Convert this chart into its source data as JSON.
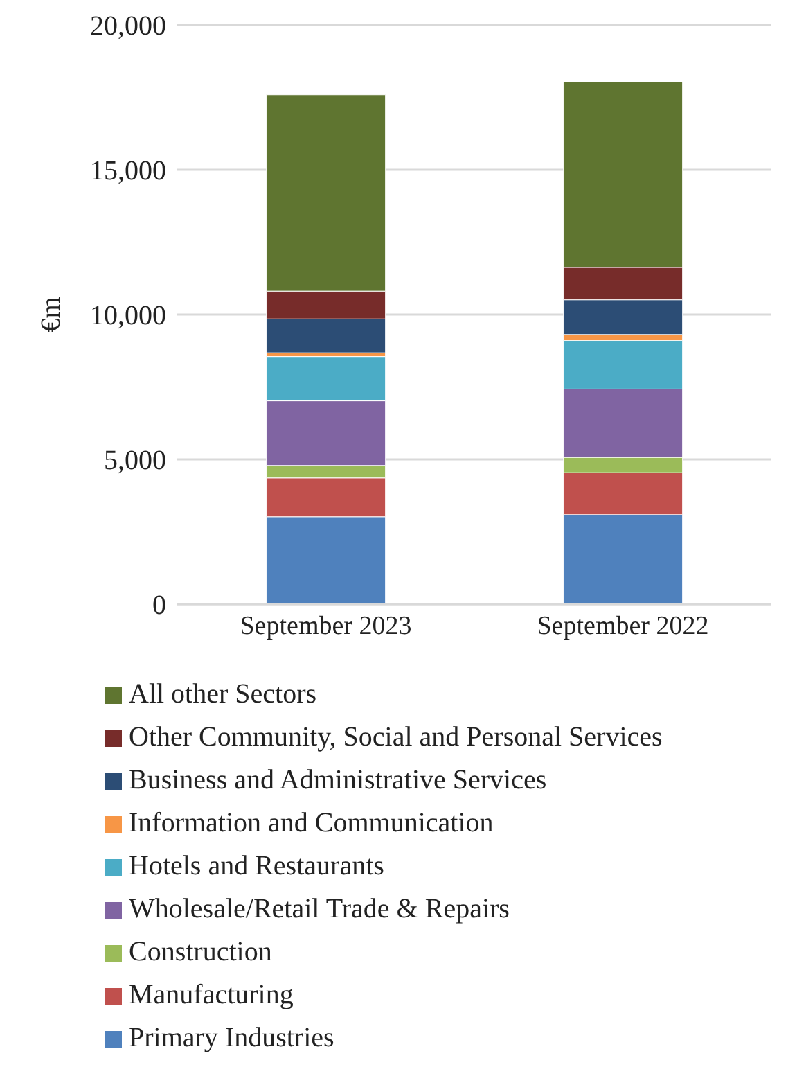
{
  "chart_data": {
    "type": "bar",
    "stacked": true,
    "ylabel": "€m",
    "categories": [
      "September 2023",
      "September 2022"
    ],
    "series": [
      {
        "name": "Primary Industries",
        "color": "#4f81bd",
        "values": [
          3020,
          3090
        ]
      },
      {
        "name": "Manufacturing",
        "color": "#c0504d",
        "values": [
          1340,
          1450
        ]
      },
      {
        "name": "Construction",
        "color": "#9bbb59",
        "values": [
          430,
          530
        ]
      },
      {
        "name": "Wholesale/Retail Trade & Repairs",
        "color": "#8064a2",
        "values": [
          2230,
          2360
        ]
      },
      {
        "name": "Hotels and Restaurants",
        "color": "#4bacc6",
        "values": [
          1530,
          1680
        ]
      },
      {
        "name": "Information and Communication",
        "color": "#f79646",
        "values": [
          130,
          200
        ]
      },
      {
        "name": "Business and Administrative Services",
        "color": "#2c4d75",
        "values": [
          1170,
          1200
        ]
      },
      {
        "name": "Other Community, Social and Personal Services",
        "color": "#772c2a",
        "values": [
          960,
          1120
        ]
      },
      {
        "name": "All other Sectors",
        "color": "#5f7530",
        "values": [
          6780,
          6400
        ]
      }
    ],
    "ylim": [
      0,
      20000
    ],
    "yticks": [
      {
        "value": 0,
        "label": "0"
      },
      {
        "value": 5000,
        "label": "5,000"
      },
      {
        "value": 10000,
        "label": "10,000"
      },
      {
        "value": 15000,
        "label": "15,000"
      },
      {
        "value": 20000,
        "label": "20,000"
      }
    ],
    "grid": "y",
    "legend": "bottom"
  }
}
